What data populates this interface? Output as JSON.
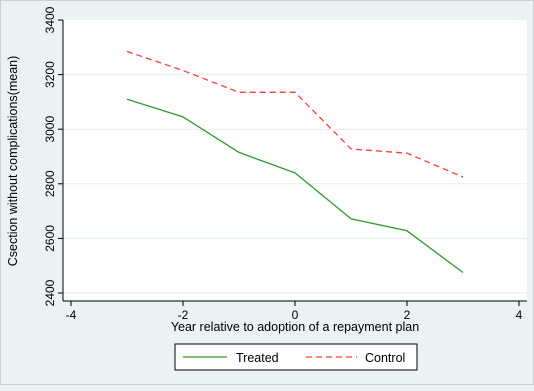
{
  "chart_data": {
    "type": "line",
    "title": "",
    "xlabel": "Year relative to adoption of a repayment plan",
    "ylabel": "Csection without complications(mean)",
    "xlim": [
      -4,
      4
    ],
    "ylim": [
      2400,
      3400
    ],
    "xticks": [
      -4,
      -2,
      0,
      2,
      4
    ],
    "yticks": [
      2400,
      2600,
      2800,
      3000,
      3200,
      3400
    ],
    "grid": true,
    "legend_position": "bottom",
    "x": [
      -3,
      -2,
      -1,
      0,
      1,
      2,
      3
    ],
    "series": [
      {
        "name": "Treated",
        "values": [
          3110,
          3045,
          2915,
          2840,
          2672,
          2628,
          2475
        ],
        "color": "#2e9a2e",
        "style": "solid"
      },
      {
        "name": "Control",
        "values": [
          3285,
          3215,
          3135,
          3135,
          2928,
          2912,
          2825
        ],
        "color": "#ff3b3b",
        "style": "dashed"
      }
    ]
  }
}
